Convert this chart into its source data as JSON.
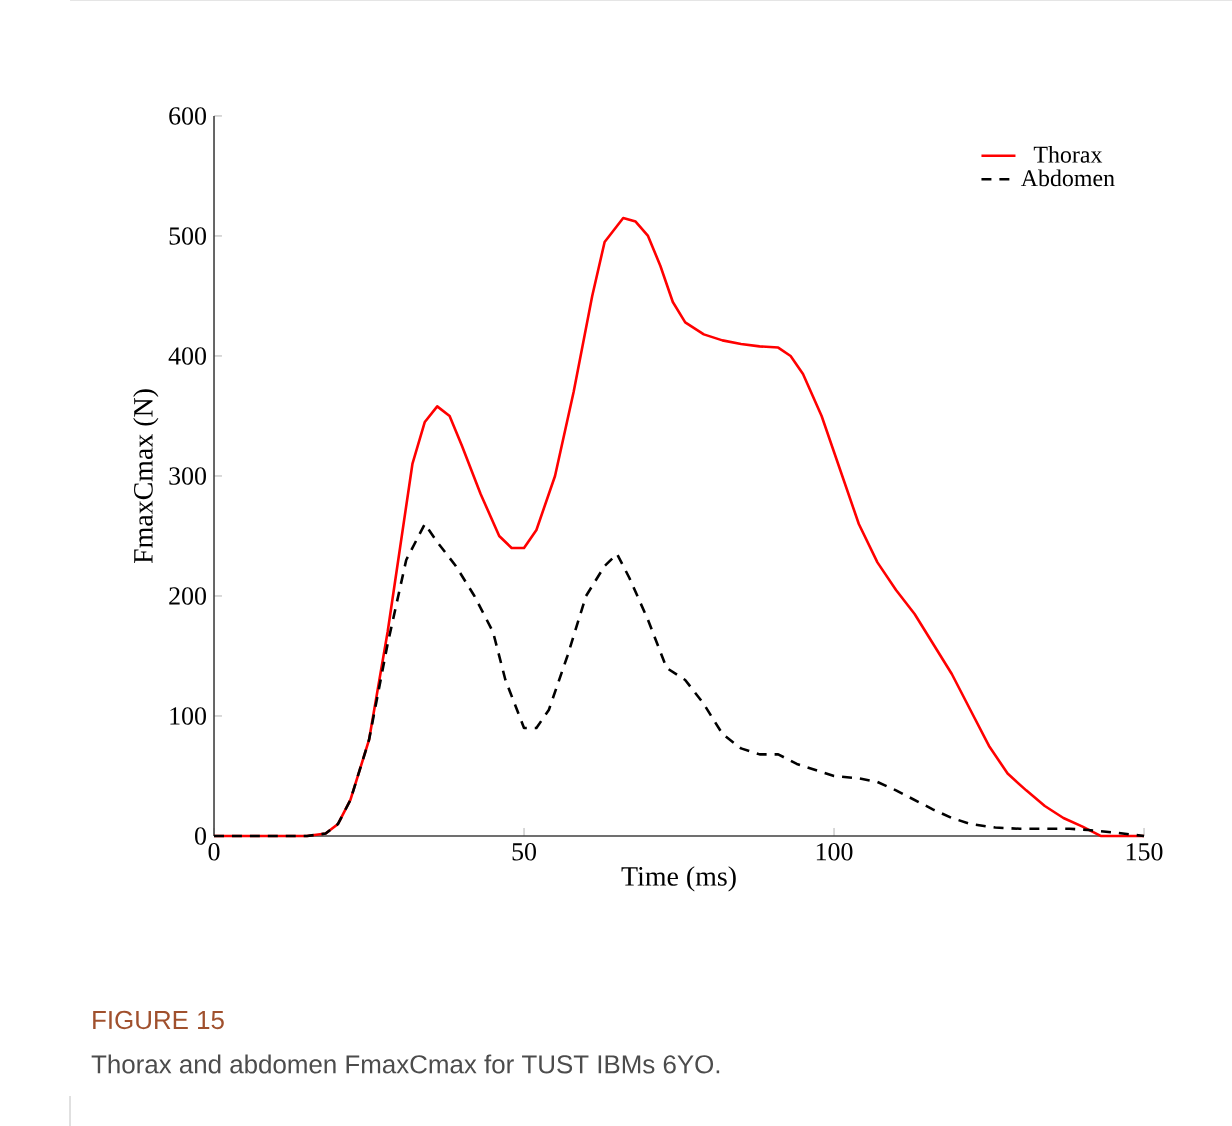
{
  "chart_data": {
    "type": "line",
    "xlabel": "Time (ms)",
    "ylabel": "FmaxCmax (N)",
    "annotations": [
      "FIGURE 15",
      "Thorax and abdomen FmaxCmax for TUST IBMs 6YO."
    ],
    "xlim": [
      0,
      150
    ],
    "ylim": [
      0,
      600
    ],
    "xticks": [
      0,
      50,
      100,
      150
    ],
    "yticks": [
      0,
      100,
      200,
      300,
      400,
      500,
      600
    ],
    "grid": false,
    "legend": "top right",
    "marker": "none",
    "series": [
      {
        "name": "Thorax",
        "color": "#ff0000",
        "line_style": "solid",
        "x": [
          0,
          15,
          18,
          20,
          22,
          25,
          28,
          30,
          32,
          34,
          36,
          38,
          40,
          43,
          46,
          48,
          50,
          52,
          55,
          58,
          61,
          63,
          66,
          68,
          70,
          72,
          74,
          76,
          79,
          82,
          85,
          88,
          91,
          93,
          95,
          98,
          101,
          104,
          107,
          110,
          113,
          116,
          119,
          122,
          125,
          128,
          131,
          134,
          137,
          140,
          143,
          150
        ],
        "values": [
          0,
          0,
          2,
          10,
          30,
          80,
          170,
          240,
          310,
          345,
          358,
          350,
          325,
          285,
          250,
          240,
          240,
          255,
          300,
          370,
          450,
          495,
          515,
          512,
          500,
          475,
          445,
          428,
          418,
          413,
          410,
          408,
          407,
          400,
          385,
          350,
          305,
          260,
          228,
          205,
          185,
          160,
          135,
          105,
          75,
          52,
          38,
          25,
          15,
          8,
          0,
          0
        ]
      },
      {
        "name": "Abdomen",
        "color": "#000000",
        "line_style": "dashed",
        "x": [
          0,
          15,
          18,
          20,
          22,
          25,
          28,
          31,
          34,
          36,
          39,
          42,
          45,
          47,
          50,
          52,
          54,
          57,
          60,
          63,
          65,
          67,
          70,
          73,
          76,
          79,
          82,
          85,
          88,
          91,
          94,
          97,
          100,
          104,
          107,
          110,
          113,
          116,
          119,
          122,
          126,
          130,
          134,
          138,
          141,
          145,
          150
        ],
        "values": [
          0,
          0,
          2,
          10,
          30,
          80,
          160,
          230,
          260,
          245,
          225,
          200,
          170,
          130,
          90,
          90,
          105,
          150,
          200,
          225,
          235,
          215,
          180,
          140,
          130,
          110,
          85,
          73,
          68,
          68,
          60,
          55,
          50,
          48,
          45,
          38,
          30,
          22,
          15,
          10,
          7,
          6,
          6,
          6,
          5,
          3,
          0
        ]
      }
    ]
  }
}
